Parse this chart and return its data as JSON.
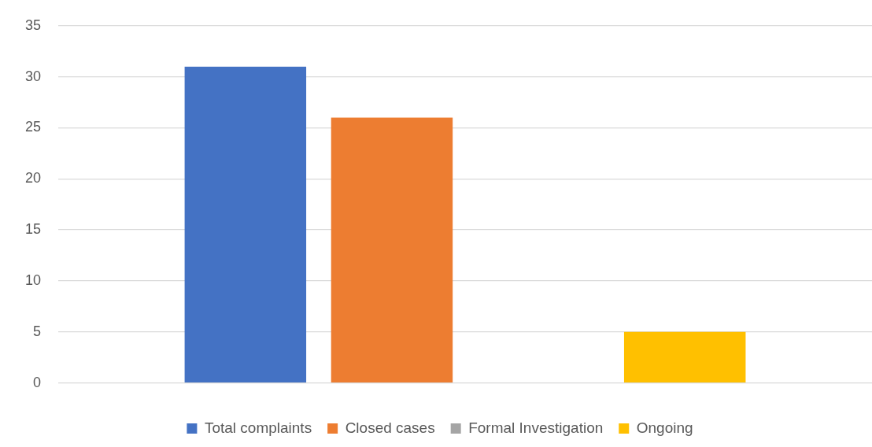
{
  "chart_data": {
    "type": "bar",
    "categories": [
      null
    ],
    "series": [
      {
        "name": "Total complaints",
        "color": "#4472c4",
        "values": [
          31
        ]
      },
      {
        "name": "Closed cases",
        "color": "#ed7d31",
        "values": [
          26
        ]
      },
      {
        "name": "Formal Investigation",
        "color": "#a5a5a5",
        "values": [
          0
        ]
      },
      {
        "name": "Ongoing",
        "color": "#ffc000",
        "values": [
          5
        ]
      }
    ],
    "ylim": [
      0,
      35
    ],
    "yticks": [
      0,
      5,
      10,
      15,
      20,
      25,
      30,
      35
    ],
    "grid": "y",
    "legend": "bottom"
  }
}
